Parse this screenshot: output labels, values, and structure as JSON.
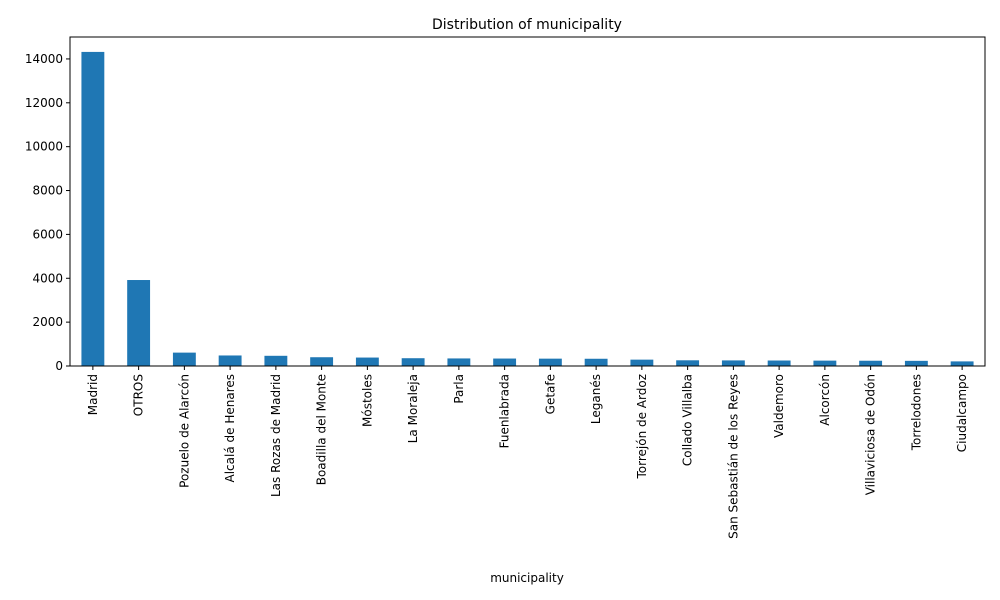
{
  "chart_data": {
    "type": "bar",
    "title": "Distribution of municipality",
    "xlabel": "municipality",
    "ylabel": "",
    "ylim": [
      0,
      15000
    ],
    "yticks": [
      0,
      2000,
      4000,
      6000,
      8000,
      10000,
      12000,
      14000
    ],
    "bar_color": "#1f77b4",
    "grid": false,
    "categories": [
      "Madrid",
      "OTROS",
      "Pozuelo de Alarcón",
      "Alcalá de Henares",
      "Las Rozas de Madrid",
      "Boadilla del Monte",
      "Móstoles",
      "La Moraleja",
      "Parla",
      "Fuenlabrada",
      "Getafe",
      "Leganés",
      "Torrejón de Ardoz",
      "Collado Villalba",
      "San Sebastián de los Reyes",
      "Valdemoro",
      "Alcorcón",
      "Villaviciosa de Odón",
      "Torrelodones",
      "Ciudalcampo"
    ],
    "values": [
      14320,
      3920,
      610,
      480,
      465,
      400,
      385,
      355,
      345,
      340,
      335,
      330,
      290,
      260,
      255,
      250,
      245,
      240,
      235,
      210
    ]
  }
}
